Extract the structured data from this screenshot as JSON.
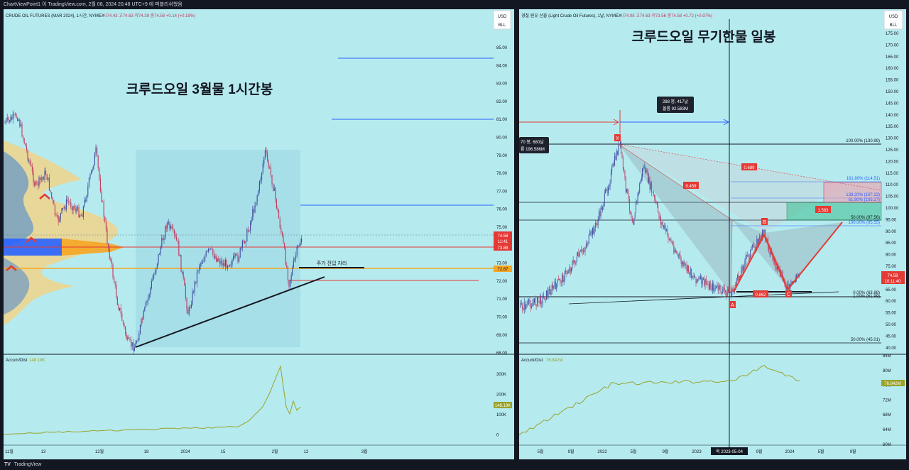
{
  "window": {
    "title": "ChartViewPoint1 이 TradingView.com, 2월 08, 2024 20:48 UTC+9 에 퍼블리쉬했음",
    "footer_brand": "TradingView",
    "footer_logo": "TV"
  },
  "left": {
    "symbol_line": "CRUDE OIL FUTURES (MAR 2024), 1시간, NYMEX",
    "ohlc": "시74.43  고74.63  저74.39  종74.58  +0.14 (+0.19%)",
    "currency": "USD",
    "unit": "BLL",
    "title": "크루드오일 3월물 1시간봉",
    "annotation": "주가 진입 자리",
    "price_labels": [
      "85.00",
      "84.00",
      "83.00",
      "82.00",
      "81.00",
      "80.00",
      "79.00",
      "78.00",
      "77.00",
      "76.00",
      "75.00",
      "74.00",
      "73.00",
      "72.00",
      "71.00",
      "70.00",
      "69.00",
      "68.00"
    ],
    "last_price": "74.58",
    "countdown": "11:41",
    "red_level": "73.88",
    "orange_level": "72.67",
    "indicator_label": "Accum/Dist",
    "indicator_value": "148.19K",
    "indicator_ticks": [
      "300K",
      "200K",
      "100K",
      "0"
    ],
    "x_ticks": [
      "11월",
      "13",
      "12월",
      "18",
      "2024",
      "15",
      "2월",
      "12",
      "3월"
    ]
  },
  "right": {
    "symbol_line": "경질 원유 선물 (Light Crude Oil Futures), 1날, NYMEX",
    "ohlc": "시74.08  고74.63  저73.56  종74.58  +0.72 (+0.97%)",
    "currency": "USD",
    "unit": "BLL",
    "title": "크루드오일 무기한물 일봉",
    "measure_box_line1": "288 봉, 417날",
    "measure_box_line2": "볼륨 92.583M",
    "measure_box2_line1": "70 봉, 680날",
    "measure_box2_line2": "륨 196.586M",
    "fib_labels": [
      "100.00% (130.99)",
      "161.80% (114.51)",
      "138.20% (107.23)",
      "61.80% (105.27)",
      "50.00% (97.56)",
      "100.00% (95.55)",
      "0.00% (63.88)",
      "1.00% (61.99)",
      "50.00% (45.01)"
    ],
    "ratio_labels": [
      "0.689",
      "0.459",
      "1.583",
      "0.862"
    ],
    "point_labels": [
      "X",
      "A",
      "B",
      "C"
    ],
    "price_labels": [
      "175.00",
      "170.00",
      "165.00",
      "160.00",
      "155.00",
      "150.00",
      "145.00",
      "140.00",
      "135.00",
      "130.00",
      "125.00",
      "120.00",
      "115.00",
      "110.00",
      "105.00",
      "100.00",
      "95.00",
      "90.00",
      "85.00",
      "80.00",
      "75.00",
      "70.00",
      "65.00",
      "60.00",
      "55.00",
      "50.00",
      "45.00",
      "40.00"
    ],
    "last_price": "74.58",
    "countdown": "10:11:40",
    "indicator_label": "Accum/Dist",
    "indicator_value": "76.842M",
    "indicator_ticks": [
      "84M",
      "80M",
      "76M",
      "72M",
      "68M",
      "64M",
      "60M"
    ],
    "x_ticks": [
      "5월",
      "9월",
      "2022",
      "5월",
      "9월",
      "2023",
      "5월",
      "9월",
      "2024",
      "5월",
      "9월"
    ],
    "cursor_date": "목 2023-05-04"
  },
  "colors": {
    "panel_bg": "#b5ebef",
    "candle": "#3d4a9e",
    "candle_down": "#c0395f",
    "red_line": "#e53935",
    "orange_line": "#f5a623",
    "blue_line": "#2962ff",
    "adline": "#9aa22a",
    "volume_profile": "#f0d38a",
    "volume_poc": "#2962ff"
  }
}
